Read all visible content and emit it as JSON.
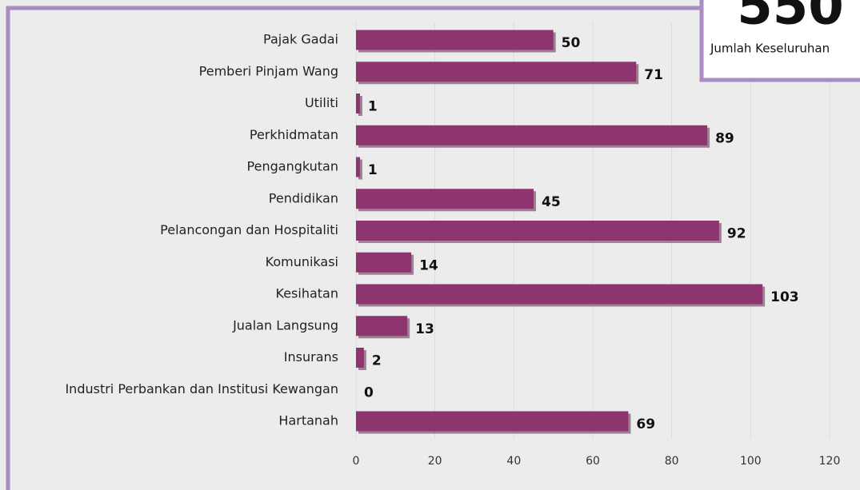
{
  "chart_data": {
    "type": "hbar",
    "categories": [
      "Pajak Gadai",
      "Pemberi Pinjam Wang",
      "Utiliti",
      "Perkhidmatan",
      "Pengangkutan",
      "Pendidikan",
      "Pelancongan dan Hospitaliti",
      "Komunikasi",
      "Kesihatan",
      "Jualan Langsung",
      "Insurans",
      "Industri Perbankan dan Institusi Kewangan",
      "Hartanah"
    ],
    "values": [
      50,
      71,
      1,
      89,
      1,
      45,
      92,
      14,
      103,
      13,
      2,
      0,
      69
    ],
    "color": "#8e356f",
    "xlim": [
      0,
      120
    ],
    "xticks": [
      0,
      20,
      40,
      60,
      80,
      100,
      120
    ],
    "grid": true
  },
  "total": {
    "value": 550,
    "label": "Jumlah Keseluruhan"
  }
}
